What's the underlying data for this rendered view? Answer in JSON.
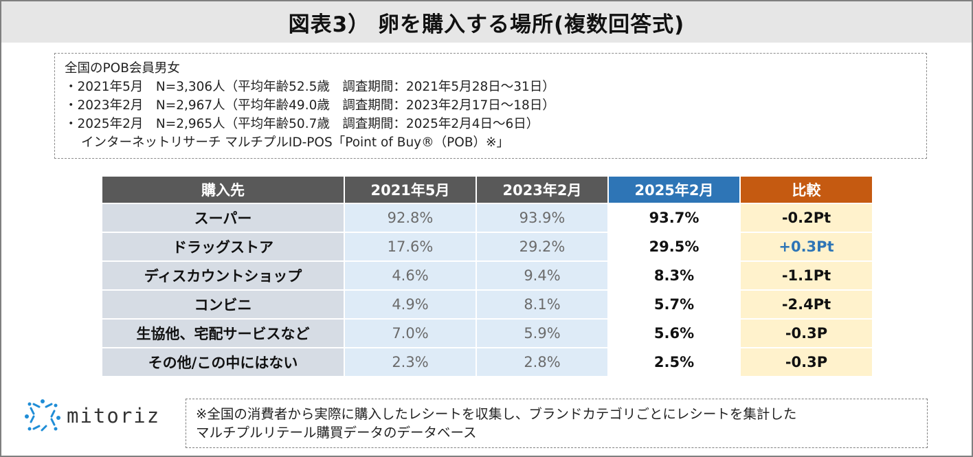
{
  "title": "図表3） 卵を購入する場所(複数回答式)",
  "info": {
    "lines": [
      "全国のPOB会員男女",
      "・2021年5月　N=3,306人（平均年齢52.5歳　調査期間：2021年5月28日〜31日）",
      "・2023年2月　N=2,967人（平均年齢49.0歳　調査期間：2023年2月17日〜18日）",
      "・2025年2月　N=2,965人（平均年齢50.7歳　調査期間：2025年2月4日〜6日）"
    ],
    "source_line": "インターネットリサーチ マルチプルID-POS「Point of Buy®（POB）※」"
  },
  "table": {
    "headers": [
      "購入先",
      "2021年5月",
      "2023年2月",
      "2025年2月",
      "比較"
    ],
    "rows": [
      {
        "name": "スーパー",
        "v2021": "92.8%",
        "v2023": "93.9%",
        "v2025": "93.7%",
        "diff": "-0.2Pt"
      },
      {
        "name": "ドラッグストア",
        "v2021": "17.6%",
        "v2023": "29.2%",
        "v2025": "29.5%",
        "diff": "+0.3Pt"
      },
      {
        "name": "ディスカウントショップ",
        "v2021": "4.6%",
        "v2023": "9.4%",
        "v2025": "8.3%",
        "diff": "-1.1Pt"
      },
      {
        "name": "コンビニ",
        "v2021": "4.9%",
        "v2023": "8.1%",
        "v2025": "5.7%",
        "diff": "-2.4Pt"
      },
      {
        "name": "生協他、宅配サービスなど",
        "v2021": "7.0%",
        "v2023": "5.9%",
        "v2025": "5.6%",
        "diff": "-0.3P"
      },
      {
        "name": "その他/この中にはない",
        "v2021": "2.3%",
        "v2023": "2.8%",
        "v2025": "2.5%",
        "diff": "-0.3P"
      }
    ]
  },
  "colors": {
    "header_dark": "#595959",
    "header_blue": "#2e75b6",
    "header_orange": "#c55a11",
    "positive_diff": "#2e75b6",
    "logo_blue": "#1f8dd6"
  },
  "logo": {
    "text": "mitoriz",
    "icon": "sun-dots-icon"
  },
  "note": {
    "lines": [
      "※全国の消費者から実際に購入したレシートを収集し、ブランドカテゴリごとにレシートを集計した",
      "マルチプルリテール購買データのデータベース"
    ]
  }
}
